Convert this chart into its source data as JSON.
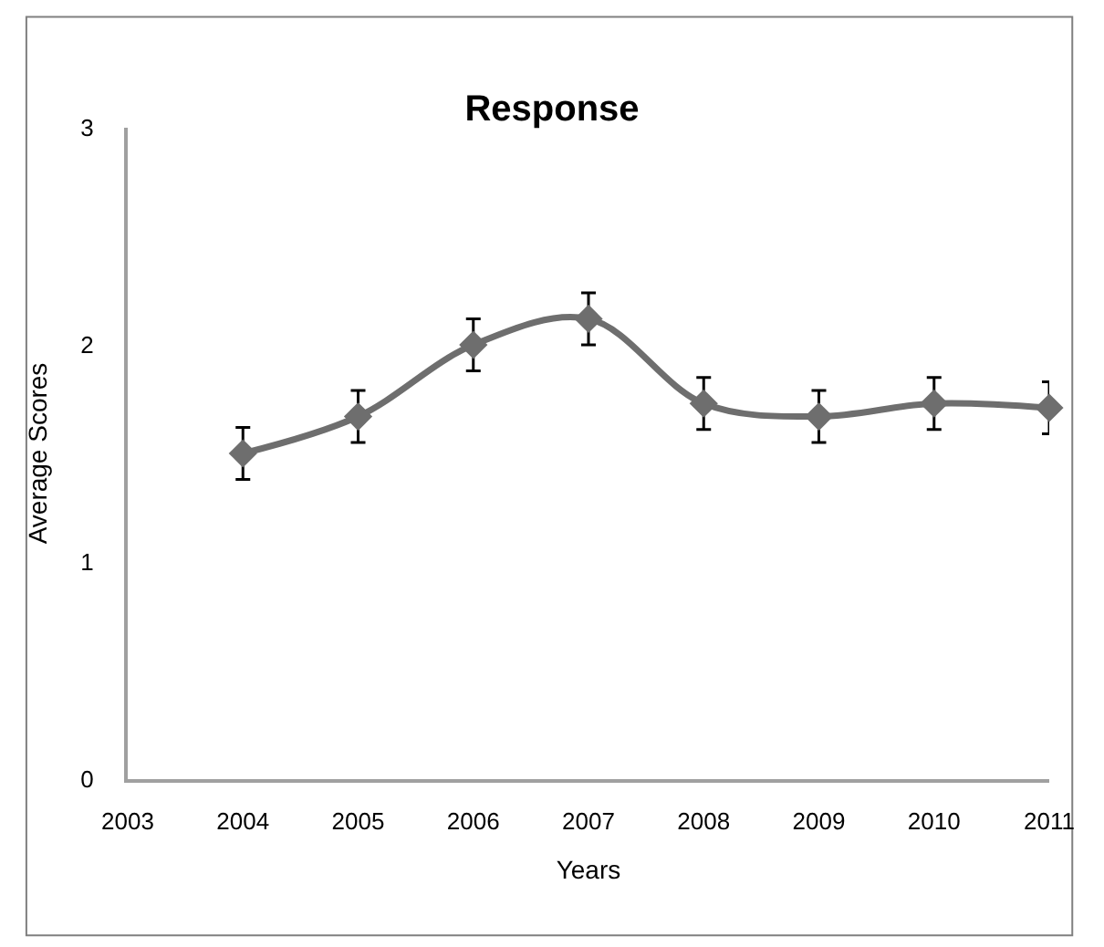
{
  "chart_data": {
    "type": "line",
    "title": "Response",
    "xlabel": "Years",
    "ylabel": "Average Scores",
    "x": [
      2004,
      2005,
      2006,
      2007,
      2008,
      2009,
      2010,
      2011
    ],
    "series": [
      {
        "color": "#6e6e6e",
        "values": [
          1.5,
          1.67,
          2.0,
          2.12,
          1.73,
          1.67,
          1.73,
          1.71
        ],
        "errors": [
          0.12,
          0.12,
          0.12,
          0.12,
          0.12,
          0.12,
          0.12,
          0.12
        ]
      }
    ],
    "xlim": [
      2003,
      2011
    ],
    "xticks": [
      2003,
      2004,
      2005,
      2006,
      2007,
      2008,
      2009,
      2010,
      2011
    ],
    "ylim": [
      0,
      3
    ],
    "yticks": [
      0,
      1,
      2,
      3
    ],
    "legend": false,
    "marker": "diamond",
    "line_style": "solid"
  }
}
